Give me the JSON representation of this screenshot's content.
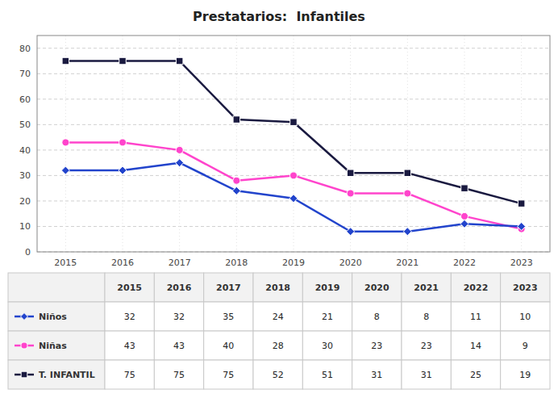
{
  "chart_data": {
    "type": "line",
    "title": "Prestatarios:  Infantiles",
    "x": [
      2015,
      2016,
      2017,
      2018,
      2019,
      2020,
      2021,
      2022,
      2023
    ],
    "series": [
      {
        "name": "Niños",
        "color": "#2244cc",
        "marker": "diamond",
        "values": [
          32,
          32,
          35,
          24,
          21,
          8,
          8,
          11,
          10
        ]
      },
      {
        "name": "Niñas",
        "color": "#ff44cc",
        "marker": "circle",
        "values": [
          43,
          43,
          40,
          28,
          30,
          23,
          23,
          14,
          9
        ]
      },
      {
        "name": "T. INFANTIL",
        "color": "#1a1a40",
        "marker": "square",
        "values": [
          75,
          75,
          75,
          52,
          51,
          31,
          31,
          25,
          19
        ]
      }
    ],
    "xlim": [
      2014.5,
      2023.5
    ],
    "xticks": [
      2015,
      2016,
      2017,
      2018,
      2019,
      2020,
      2021,
      2022,
      2023
    ],
    "ylim": [
      0,
      85
    ],
    "yticks": [
      0,
      10,
      20,
      30,
      40,
      50,
      60,
      70,
      80
    ],
    "grid": true
  }
}
